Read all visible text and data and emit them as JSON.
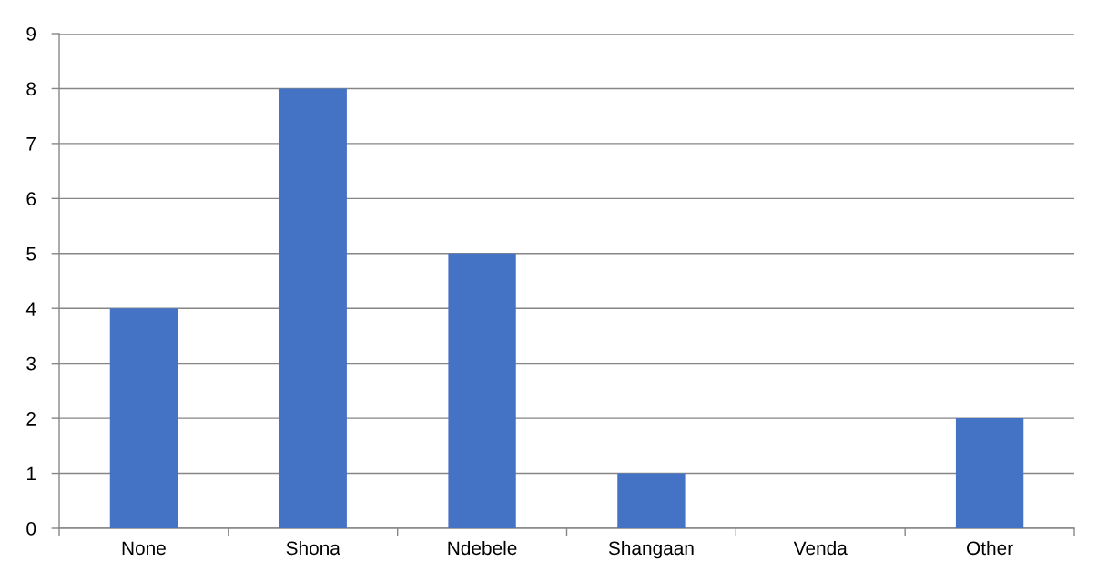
{
  "chart_data": {
    "type": "bar",
    "categories": [
      "None",
      "Shona",
      "Ndebele",
      "Shangaan",
      "Venda",
      "Other"
    ],
    "values": [
      4,
      8,
      5,
      1,
      0,
      2
    ],
    "color": "#4472c4",
    "ylim": [
      0,
      9
    ],
    "yticks": [
      0,
      1,
      2,
      3,
      4,
      5,
      6,
      7,
      8,
      9
    ],
    "grid": "y"
  }
}
